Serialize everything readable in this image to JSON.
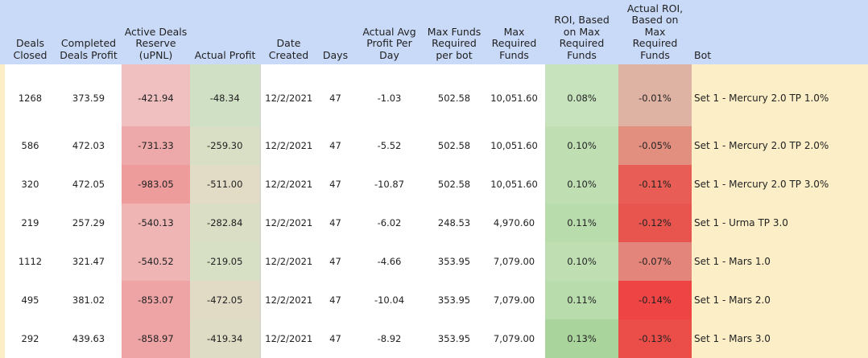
{
  "headers": {
    "deals_closed": [
      "Deals",
      "Closed"
    ],
    "completed_profit": [
      "Completed",
      "Deals Profit"
    ],
    "active_reserve": [
      "Active Deals",
      "Reserve",
      "(uPNL)"
    ],
    "actual_profit": [
      "Actual Profit"
    ],
    "date_created": [
      "Date",
      "Created"
    ],
    "days": [
      "Days"
    ],
    "avg_profit": [
      "Actual Avg",
      "Profit Per",
      "Day"
    ],
    "max_funds_bot": [
      "Max Funds",
      "Required",
      "per bot"
    ],
    "max_funds": [
      "Max",
      "Required",
      "Funds"
    ],
    "roi": [
      "ROI, Based",
      "on Max",
      "Required",
      "Funds"
    ],
    "actual_roi": [
      "Actual ROI,",
      "Based on",
      "Max",
      "Required",
      "Funds"
    ],
    "bot": [
      "Bot"
    ]
  },
  "rows": [
    {
      "deals_closed": "1268",
      "completed_profit": "373.59",
      "active_reserve": "-421.94",
      "actual_profit": "-48.34",
      "date_created": "12/2/2021",
      "days": "47",
      "avg_profit": "-1.03",
      "max_funds_bot": "502.58",
      "max_funds": "10,051.60",
      "roi": "0.08%",
      "actual_roi": "-0.01%",
      "bot": "Set 1 - Mercury 2.0 TP 1.0%",
      "colors": {
        "reserve": "#f0c0c0",
        "actual": "#cfe0c5",
        "roi": "#c7e3bd",
        "actual_roi": "#dfb3a4"
      }
    },
    {
      "deals_closed": "586",
      "completed_profit": "472.03",
      "active_reserve": "-731.33",
      "actual_profit": "-259.30",
      "date_created": "12/2/2021",
      "days": "47",
      "avg_profit": "-5.52",
      "max_funds_bot": "502.58",
      "max_funds": "10,051.60",
      "roi": "0.10%",
      "actual_roi": "-0.05%",
      "bot": "Set 1 - Mercury 2.0 TP 2.0%",
      "colors": {
        "reserve": "#eda9a9",
        "actual": "#d9dfc5",
        "roi": "#bfdfb3",
        "actual_roi": "#e38f80"
      }
    },
    {
      "deals_closed": "320",
      "completed_profit": "472.05",
      "active_reserve": "-983.05",
      "actual_profit": "-511.00",
      "date_created": "12/2/2021",
      "days": "47",
      "avg_profit": "-10.87",
      "max_funds_bot": "502.58",
      "max_funds": "10,051.60",
      "roi": "0.10%",
      "actual_roi": "-0.11%",
      "bot": "Set 1 - Mercury 2.0 TP 3.0%",
      "colors": {
        "reserve": "#ed9b9b",
        "actual": "#e2dbc5",
        "roi": "#bfdfb3",
        "actual_roi": "#e85d55"
      }
    },
    {
      "deals_closed": "219",
      "completed_profit": "257.29",
      "active_reserve": "-540.13",
      "actual_profit": "-282.84",
      "date_created": "12/2/2021",
      "days": "47",
      "avg_profit": "-6.02",
      "max_funds_bot": "248.53",
      "max_funds": "4,970.60",
      "roi": "0.11%",
      "actual_roi": "-0.12%",
      "bot": "Set 1 - Urma TP 3.0",
      "colors": {
        "reserve": "#efb5b5",
        "actual": "#dadec5",
        "roi": "#b9dcad",
        "actual_roi": "#e8554f"
      }
    },
    {
      "deals_closed": "1112",
      "completed_profit": "321.47",
      "active_reserve": "-540.52",
      "actual_profit": "-219.05",
      "date_created": "12/2/2021",
      "days": "47",
      "avg_profit": "-4.66",
      "max_funds_bot": "353.95",
      "max_funds": "7,079.00",
      "roi": "0.10%",
      "actual_roi": "-0.07%",
      "bot": "Set 1 - Mars 1.0",
      "colors": {
        "reserve": "#efb5b5",
        "actual": "#d7dfc5",
        "roi": "#bfdfb3",
        "actual_roi": "#e3857a"
      }
    },
    {
      "deals_closed": "495",
      "completed_profit": "381.02",
      "active_reserve": "-853.07",
      "actual_profit": "-472.05",
      "date_created": "12/2/2021",
      "days": "47",
      "avg_profit": "-10.04",
      "max_funds_bot": "353.95",
      "max_funds": "7,079.00",
      "roi": "0.11%",
      "actual_roi": "-0.14%",
      "bot": "Set 1 - Mars 2.0",
      "colors": {
        "reserve": "#eea4a4",
        "actual": "#e1dbc5",
        "roi": "#b9dcad",
        "actual_roi": "#ee4444"
      }
    },
    {
      "deals_closed": "292",
      "completed_profit": "439.63",
      "active_reserve": "-858.97",
      "actual_profit": "-419.34",
      "date_created": "12/2/2021",
      "days": "47",
      "avg_profit": "-8.92",
      "max_funds_bot": "353.95",
      "max_funds": "7,079.00",
      "roi": "0.13%",
      "actual_roi": "-0.13%",
      "bot": "Set 1 - Mars 3.0",
      "colors": {
        "reserve": "#eea4a4",
        "actual": "#dfdcc5",
        "roi": "#a9d59c",
        "actual_roi": "#eb4e49"
      }
    }
  ]
}
